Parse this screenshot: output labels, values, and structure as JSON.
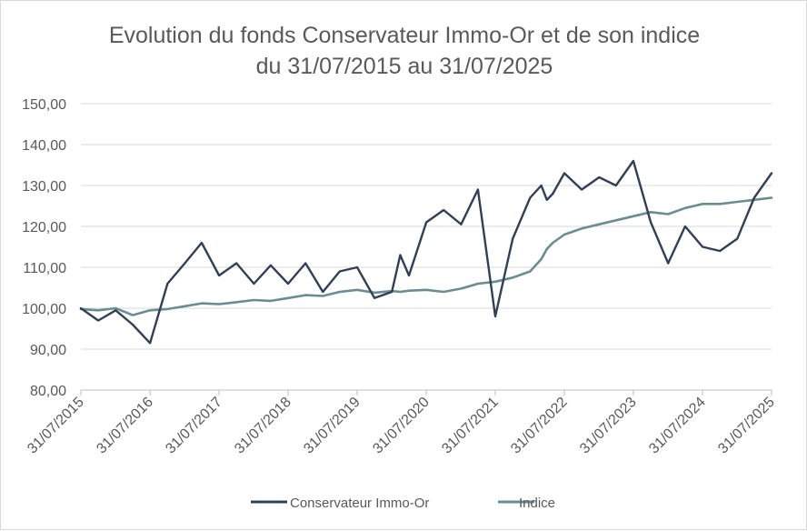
{
  "chart_data": {
    "type": "line",
    "title": "Evolution du fonds Conservateur Immo-Or et de son indice",
    "subtitle": "du 31/07/2015 au 31/07/2025",
    "xlabel": "",
    "ylabel": "",
    "ylim": [
      80,
      150
    ],
    "yticks": [
      "80,00",
      "90,00",
      "100,00",
      "110,00",
      "120,00",
      "130,00",
      "140,00",
      "150,00"
    ],
    "x": [
      "31/07/2015",
      "31/10/2015",
      "31/01/2016",
      "30/04/2016",
      "31/07/2016",
      "31/10/2016",
      "31/01/2017",
      "30/04/2017",
      "31/07/2017",
      "31/10/2017",
      "31/01/2018",
      "30/04/2018",
      "31/07/2018",
      "31/10/2018",
      "31/01/2019",
      "30/04/2019",
      "31/07/2019",
      "31/10/2019",
      "31/01/2020",
      "15/03/2020",
      "30/04/2020",
      "31/07/2020",
      "31/10/2020",
      "31/01/2021",
      "30/04/2021",
      "31/07/2021",
      "31/10/2021",
      "31/01/2022",
      "31/03/2022",
      "30/04/2022",
      "31/05/2022",
      "31/07/2022",
      "31/10/2022",
      "31/01/2023",
      "30/04/2023",
      "31/07/2023",
      "31/10/2023",
      "31/01/2024",
      "30/04/2024",
      "31/07/2024",
      "31/10/2024",
      "31/01/2025",
      "30/04/2025",
      "31/07/2025"
    ],
    "xticks": [
      "31/07/2015",
      "31/07/2016",
      "31/07/2017",
      "31/07/2018",
      "31/07/2019",
      "31/07/2020",
      "31/07/2021",
      "31/07/2022",
      "31/07/2023",
      "31/07/2024",
      "31/07/2025"
    ],
    "series": [
      {
        "name": "Conservateur Immo-Or",
        "color": "#2f4058",
        "values": [
          100.0,
          97.0,
          99.5,
          96.0,
          91.5,
          106.0,
          111.0,
          116.0,
          108.0,
          111.0,
          106.0,
          110.5,
          106.0,
          111.0,
          104.0,
          109.0,
          110.0,
          102.5,
          104.0,
          113.0,
          108.0,
          121.0,
          124.0,
          120.5,
          129.0,
          98.0,
          117.0,
          127.0,
          130.0,
          126.5,
          128.0,
          133.0,
          129.0,
          132.0,
          130.0,
          136.0,
          121.0,
          111.0,
          120.0,
          115.0,
          114.0,
          117.0,
          127.0,
          133.0
        ]
      },
      {
        "name": "Indice",
        "color": "#6a8d92",
        "values": [
          99.8,
          99.5,
          100.0,
          98.3,
          99.5,
          99.8,
          100.5,
          101.2,
          101.0,
          101.5,
          102.0,
          101.8,
          102.5,
          103.2,
          103.0,
          104.0,
          104.5,
          103.8,
          104.2,
          104.0,
          104.3,
          104.5,
          104.0,
          104.8,
          106.0,
          106.5,
          107.5,
          109.0,
          112.0,
          114.5,
          116.0,
          118.0,
          119.5,
          120.5,
          121.5,
          122.5,
          123.5,
          123.0,
          124.5,
          125.5,
          125.5,
          126.0,
          126.5,
          127.0
        ]
      }
    ],
    "grid": true,
    "legend_position": "bottom"
  }
}
